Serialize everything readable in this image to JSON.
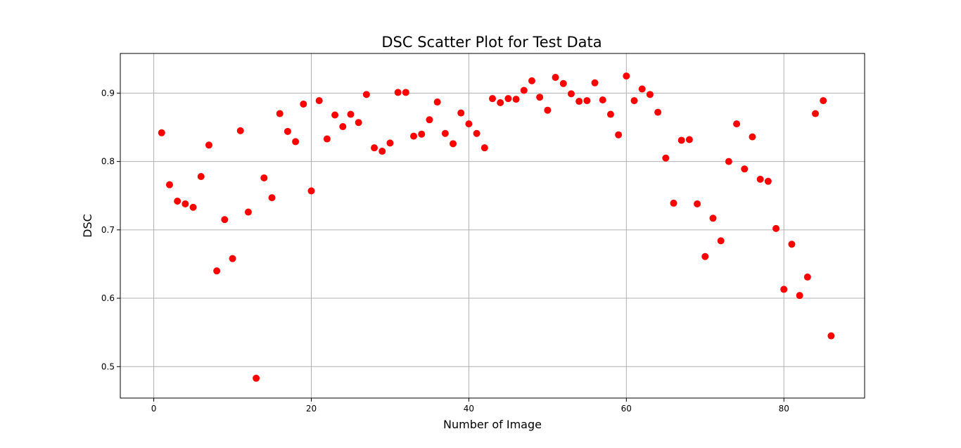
{
  "chart_data": {
    "type": "scatter",
    "title": "DSC Scatter Plot for Test Data",
    "xlabel": "Number of Image",
    "ylabel": "DSC",
    "xlim": [
      -4.25,
      90.25
    ],
    "ylim": [
      0.454,
      0.958
    ],
    "x_ticks": [
      0,
      20,
      40,
      60,
      80
    ],
    "y_ticks": [
      0.5,
      0.6,
      0.7,
      0.8,
      0.9
    ],
    "x_tick_labels": [
      "0",
      "20",
      "40",
      "60",
      "80"
    ],
    "y_tick_labels": [
      "0.5",
      "0.6",
      "0.7",
      "0.8",
      "0.9"
    ],
    "grid": true,
    "marker_color": "#ff0000",
    "series": [
      {
        "x": [
          1,
          2,
          3,
          4,
          5,
          6,
          7,
          8,
          9,
          10,
          11,
          12,
          13,
          14,
          15,
          16,
          17,
          18,
          19,
          20,
          21,
          22,
          23,
          24,
          25,
          26,
          27,
          28,
          29,
          30,
          31,
          32,
          33,
          34,
          35,
          36,
          37,
          38,
          39,
          40,
          41,
          42,
          43,
          44,
          45,
          46,
          47,
          48,
          49,
          50,
          51,
          52,
          53,
          54,
          55,
          56,
          57,
          58,
          59,
          60,
          61,
          62,
          63,
          64,
          65,
          66,
          67,
          68,
          69,
          70,
          71,
          72,
          73,
          74,
          75,
          76,
          77,
          78,
          79,
          80,
          81,
          82,
          83,
          84,
          85,
          86
        ],
        "y": [
          0.842,
          0.766,
          0.742,
          0.738,
          0.733,
          0.778,
          0.824,
          0.64,
          0.715,
          0.658,
          0.845,
          0.726,
          0.483,
          0.776,
          0.747,
          0.87,
          0.844,
          0.829,
          0.884,
          0.757,
          0.889,
          0.833,
          0.868,
          0.851,
          0.869,
          0.857,
          0.898,
          0.82,
          0.815,
          0.827,
          0.901,
          0.901,
          0.837,
          0.84,
          0.861,
          0.887,
          0.841,
          0.826,
          0.871,
          0.855,
          0.841,
          0.82,
          0.892,
          0.886,
          0.892,
          0.891,
          0.904,
          0.918,
          0.894,
          0.875,
          0.923,
          0.914,
          0.899,
          0.888,
          0.889,
          0.915,
          0.89,
          0.869,
          0.839,
          0.925,
          0.889,
          0.906,
          0.898,
          0.872,
          0.805,
          0.739,
          0.831,
          0.832,
          0.738,
          0.661,
          0.717,
          0.684,
          0.8,
          0.855,
          0.789,
          0.836,
          0.774,
          0.771,
          0.702,
          0.613,
          0.679,
          0.604,
          0.631,
          0.87,
          0.889,
          0.545
        ]
      }
    ]
  }
}
